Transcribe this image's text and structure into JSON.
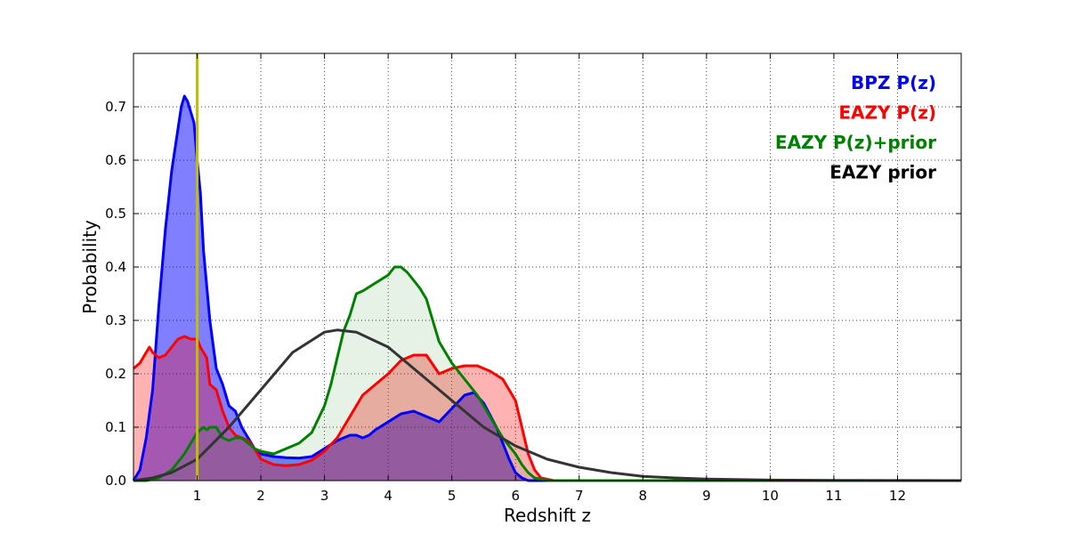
{
  "chart_data": {
    "type": "area",
    "xlabel": "Redshift z",
    "ylabel": "Probability",
    "xlim": [
      0,
      13
    ],
    "ylim": [
      0,
      0.8
    ],
    "xticks": [
      1,
      2,
      3,
      4,
      5,
      6,
      7,
      8,
      9,
      10,
      11,
      12
    ],
    "yticks": [
      0.0,
      0.1,
      0.2,
      0.3,
      0.4,
      0.5,
      0.6,
      0.7
    ],
    "ytick_labels": [
      "0.0",
      "0.1",
      "0.2",
      "0.3",
      "0.4",
      "0.5",
      "0.6",
      "0.7"
    ],
    "grid": true,
    "legend_position": "top-right",
    "reference_line_x": 1.0,
    "reference_line_color": "#bfbf00",
    "series": [
      {
        "name": "BPZ P(z)",
        "color": "#0000ff",
        "fill": "#0000ff",
        "fill_opacity": 0.5,
        "x": [
          0,
          0.1,
          0.2,
          0.3,
          0.4,
          0.5,
          0.6,
          0.7,
          0.75,
          0.8,
          0.85,
          0.9,
          0.95,
          1.0,
          1.05,
          1.1,
          1.2,
          1.3,
          1.4,
          1.5,
          1.6,
          1.7,
          1.8,
          1.9,
          2.0,
          2.2,
          2.4,
          2.6,
          2.8,
          3.0,
          3.2,
          3.4,
          3.5,
          3.6,
          3.7,
          3.8,
          4.0,
          4.2,
          4.4,
          4.6,
          4.8,
          5.0,
          5.2,
          5.35,
          5.5,
          5.7,
          5.9,
          6.0,
          6.1,
          6.2,
          6.4,
          13
        ],
        "y": [
          0,
          0.02,
          0.08,
          0.17,
          0.33,
          0.47,
          0.58,
          0.66,
          0.7,
          0.72,
          0.71,
          0.69,
          0.67,
          0.6,
          0.54,
          0.43,
          0.3,
          0.21,
          0.18,
          0.14,
          0.13,
          0.1,
          0.08,
          0.06,
          0.05,
          0.045,
          0.043,
          0.042,
          0.045,
          0.06,
          0.075,
          0.085,
          0.085,
          0.08,
          0.085,
          0.095,
          0.11,
          0.125,
          0.13,
          0.12,
          0.11,
          0.135,
          0.16,
          0.165,
          0.145,
          0.1,
          0.04,
          0.015,
          0.005,
          0.0,
          0.0,
          0.0
        ]
      },
      {
        "name": "EAZY P(z)",
        "color": "#ff0000",
        "fill": "#ff0000",
        "fill_opacity": 0.3,
        "x": [
          0,
          0.1,
          0.15,
          0.25,
          0.3,
          0.4,
          0.5,
          0.6,
          0.7,
          0.8,
          0.9,
          1.0,
          1.05,
          1.1,
          1.15,
          1.2,
          1.3,
          1.4,
          1.5,
          1.6,
          1.7,
          1.8,
          1.9,
          2.0,
          2.2,
          2.4,
          2.6,
          2.8,
          3.0,
          3.2,
          3.4,
          3.6,
          3.8,
          4.0,
          4.2,
          4.4,
          4.6,
          4.8,
          5.0,
          5.2,
          5.4,
          5.6,
          5.8,
          6.0,
          6.1,
          6.2,
          6.3,
          6.4,
          6.6,
          13
        ],
        "y": [
          0.21,
          0.22,
          0.23,
          0.25,
          0.24,
          0.23,
          0.235,
          0.25,
          0.265,
          0.27,
          0.265,
          0.265,
          0.25,
          0.24,
          0.23,
          0.18,
          0.17,
          0.13,
          0.1,
          0.085,
          0.08,
          0.075,
          0.06,
          0.04,
          0.03,
          0.028,
          0.03,
          0.038,
          0.055,
          0.08,
          0.12,
          0.16,
          0.18,
          0.2,
          0.225,
          0.235,
          0.235,
          0.2,
          0.21,
          0.215,
          0.215,
          0.205,
          0.19,
          0.15,
          0.1,
          0.05,
          0.02,
          0.005,
          0.0,
          0.0
        ]
      },
      {
        "name": "EAZY P(z)+prior",
        "color": "#008000",
        "fill": "#008000",
        "fill_opacity": 0.1,
        "x": [
          0,
          0.2,
          0.4,
          0.6,
          0.8,
          1.0,
          1.1,
          1.15,
          1.2,
          1.3,
          1.35,
          1.4,
          1.5,
          1.6,
          1.7,
          1.8,
          1.9,
          2.0,
          2.2,
          2.4,
          2.6,
          2.8,
          3.0,
          3.1,
          3.2,
          3.3,
          3.4,
          3.5,
          3.6,
          3.8,
          4.0,
          4.1,
          4.2,
          4.3,
          4.4,
          4.5,
          4.6,
          4.7,
          4.8,
          5.0,
          5.2,
          5.4,
          5.6,
          5.8,
          6.0,
          6.1,
          6.2,
          6.3,
          6.5,
          13
        ],
        "y": [
          0.0,
          0.0,
          0.005,
          0.02,
          0.05,
          0.09,
          0.1,
          0.095,
          0.1,
          0.1,
          0.09,
          0.08,
          0.075,
          0.08,
          0.08,
          0.07,
          0.06,
          0.055,
          0.05,
          0.06,
          0.07,
          0.09,
          0.14,
          0.18,
          0.23,
          0.28,
          0.31,
          0.35,
          0.355,
          0.37,
          0.385,
          0.4,
          0.4,
          0.39,
          0.375,
          0.36,
          0.34,
          0.3,
          0.26,
          0.22,
          0.19,
          0.16,
          0.12,
          0.08,
          0.05,
          0.03,
          0.015,
          0.005,
          0.0,
          0.0
        ]
      },
      {
        "name": "EAZY prior",
        "color": "#333333",
        "fill": "none",
        "x": [
          0,
          0.3,
          0.6,
          1.0,
          1.5,
          2.0,
          2.5,
          3.0,
          3.2,
          3.5,
          4.0,
          4.5,
          5.0,
          5.5,
          6.0,
          6.5,
          7.0,
          7.5,
          8.0,
          8.5,
          9.0,
          10.0,
          11.0,
          12.0,
          13.0
        ],
        "y": [
          0.0,
          0.005,
          0.015,
          0.04,
          0.1,
          0.17,
          0.24,
          0.278,
          0.282,
          0.278,
          0.25,
          0.2,
          0.15,
          0.1,
          0.065,
          0.04,
          0.025,
          0.015,
          0.008,
          0.005,
          0.003,
          0.001,
          0.0003,
          0.0001,
          0.0
        ]
      }
    ]
  }
}
